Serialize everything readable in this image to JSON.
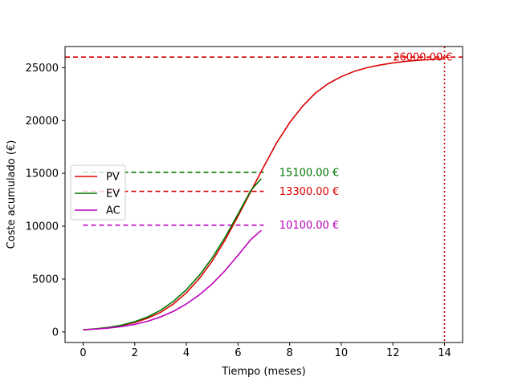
{
  "chart_data": {
    "type": "line",
    "title": "",
    "xlabel": "Tiempo (meses)",
    "ylabel": "Coste acumulado (€)",
    "xlim": [
      -0.7,
      14.7
    ],
    "ylim": [
      -1000,
      27000
    ],
    "xticks": [
      0,
      2,
      4,
      6,
      8,
      10,
      12,
      14
    ],
    "yticks": [
      0,
      5000,
      10000,
      15000,
      20000,
      25000
    ],
    "legend_position": "center-left",
    "series": [
      {
        "name": "PV",
        "color": "#dd0000",
        "x": [
          0,
          0.5,
          1,
          1.5,
          2,
          2.5,
          3,
          3.5,
          4,
          4.5,
          5,
          5.5,
          6,
          6.5,
          7,
          7.5,
          8,
          8.5,
          9,
          9.5,
          10,
          10.5,
          11,
          11.5,
          12,
          12.5,
          13,
          13.5,
          14
        ],
        "values": [
          200,
          290,
          420,
          610,
          900,
          1300,
          1850,
          2650,
          3700,
          5050,
          6700,
          8700,
          10950,
          13300,
          15650,
          17900,
          19800,
          21350,
          22600,
          23500,
          24150,
          24650,
          25000,
          25250,
          25450,
          25600,
          25700,
          25780,
          25850
        ]
      },
      {
        "name": "EV",
        "color": "#007700",
        "x": [
          0,
          0.5,
          1,
          1.5,
          2,
          2.5,
          3,
          3.5,
          4,
          4.5,
          5,
          5.5,
          6,
          6.5,
          6.9
        ],
        "values": [
          200,
          300,
          440,
          650,
          970,
          1420,
          2050,
          2900,
          4000,
          5350,
          7000,
          8950,
          11150,
          13400,
          14500
        ]
      },
      {
        "name": "AC",
        "color": "#bb00bb",
        "x": [
          0,
          0.5,
          1,
          1.5,
          2,
          2.5,
          3,
          3.5,
          4,
          4.5,
          5,
          5.5,
          6,
          6.5,
          6.9
        ],
        "values": [
          200,
          270,
          370,
          510,
          720,
          1010,
          1420,
          1950,
          2650,
          3500,
          4550,
          5800,
          7250,
          8750,
          9600
        ]
      }
    ],
    "reference_lines": [
      {
        "orientation": "horizontal",
        "y": 26000,
        "x_range": "full",
        "style": "dashed",
        "color": "#dd0000"
      },
      {
        "orientation": "horizontal",
        "y": 15100,
        "x_range": [
          0,
          7
        ],
        "style": "dashed",
        "color": "#007700"
      },
      {
        "orientation": "horizontal",
        "y": 13300,
        "x_range": [
          0,
          7
        ],
        "style": "dashed",
        "color": "#dd0000"
      },
      {
        "orientation": "horizontal",
        "y": 10100,
        "x_range": [
          0,
          7
        ],
        "style": "dashed",
        "color": "#bb00bb"
      },
      {
        "orientation": "vertical",
        "x": 14,
        "style": "dotted",
        "color": "#dd0000"
      }
    ],
    "annotations": [
      {
        "text": "26000.00 €",
        "x": 12,
        "y": 26000,
        "color": "#dd0000"
      },
      {
        "text": "15100.00 €",
        "x": 7.6,
        "y": 15100,
        "color": "#007700"
      },
      {
        "text": "13300.00 €",
        "x": 7.6,
        "y": 13300,
        "color": "#dd0000"
      },
      {
        "text": "10100.00 €",
        "x": 7.6,
        "y": 10100,
        "color": "#bb00bb"
      }
    ]
  }
}
